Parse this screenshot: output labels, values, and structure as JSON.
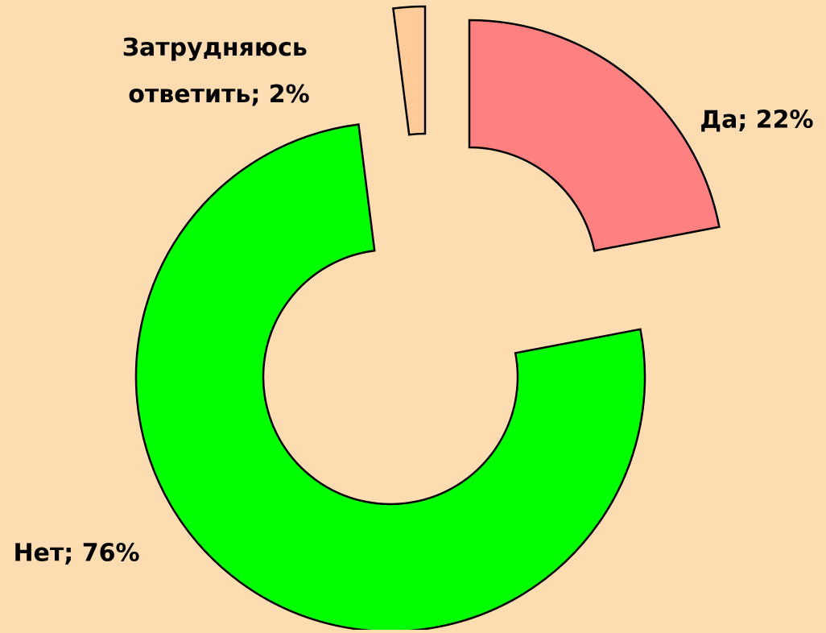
{
  "chart_data": {
    "type": "donut",
    "values": [
      22,
      76,
      2
    ],
    "value_labels": [
      "Да; 22%",
      "Нет; 76%",
      "Затрудняюсь ответить; 2%"
    ],
    "colors": [
      "#ff8080",
      "#00ff00",
      "#ffcc99"
    ]
  }
}
